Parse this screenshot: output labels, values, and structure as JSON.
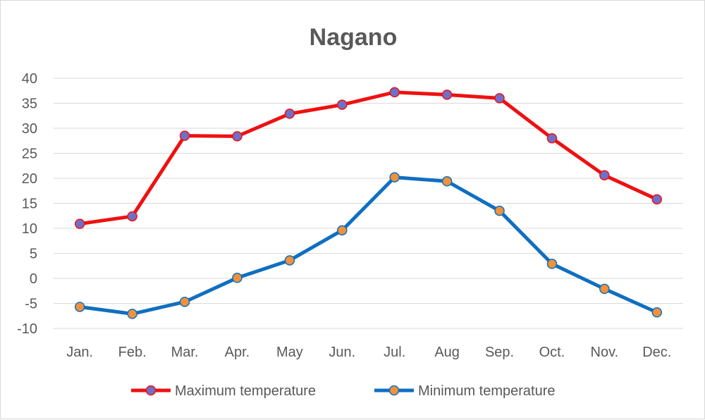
{
  "chart_data": {
    "type": "line",
    "title": "Nagano",
    "xlabel": "",
    "ylabel": "",
    "categories": [
      "Jan.",
      "Feb.",
      "Mar.",
      "Apr.",
      "May",
      "Jun.",
      "Jul.",
      "Aug",
      "Sep.",
      "Oct.",
      "Nov.",
      "Dec."
    ],
    "ylim": [
      -10,
      40
    ],
    "yticks": [
      "40",
      "35",
      "30",
      "25",
      "20",
      "15",
      "10",
      "5",
      "0",
      "-5",
      "-10"
    ],
    "grid": true,
    "legend_position": "bottom",
    "series": [
      {
        "name": "Maximum temperature",
        "line_color": "#ee1111",
        "marker_color": "#6f6fc8",
        "values": [
          10.9,
          12.4,
          28.5,
          28.4,
          32.9,
          34.7,
          37.2,
          36.7,
          36.0,
          28.0,
          20.6,
          15.8
        ]
      },
      {
        "name": "Minimum temperature",
        "line_color": "#0f6fc0",
        "marker_color": "#f0913c",
        "values": [
          -5.7,
          -7.1,
          -4.7,
          0.1,
          3.6,
          9.6,
          20.2,
          19.4,
          13.5,
          2.9,
          -2.1,
          -6.8
        ]
      }
    ]
  }
}
